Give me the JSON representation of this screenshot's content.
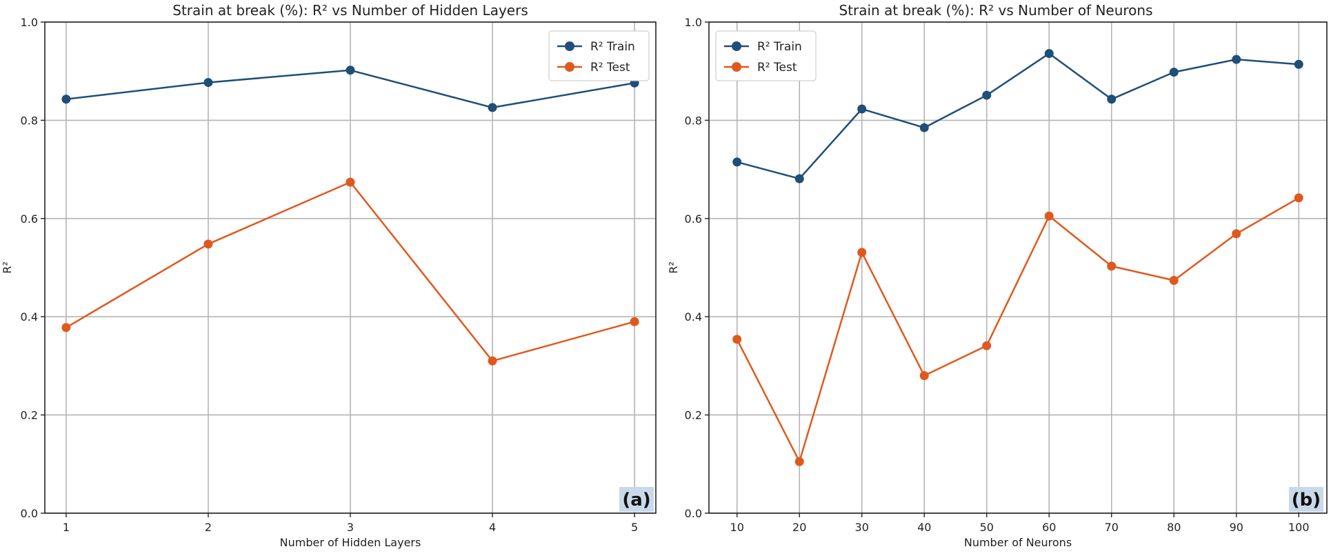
{
  "colors": {
    "train": "#1f4e79",
    "test": "#e0581e",
    "tag_bg": "#c9d9ea",
    "grid": "#b3b3b3"
  },
  "chart_data": [
    {
      "type": "line",
      "panel_label": "(a)",
      "title": "Strain at break (%): R² vs Number of Hidden Layers",
      "xlabel": "Number of Hidden Layers",
      "ylabel": "R²",
      "x": [
        1,
        2,
        3,
        4,
        5
      ],
      "xticks": [
        "1",
        "2",
        "3",
        "4",
        "5"
      ],
      "xlim": [
        0.85,
        5.15
      ],
      "ylim": [
        0.0,
        1.0
      ],
      "yticks": [
        "0.0",
        "0.2",
        "0.4",
        "0.6",
        "0.8",
        "1.0"
      ],
      "ytick_values": [
        0.0,
        0.2,
        0.4,
        0.6,
        0.8,
        1.0
      ],
      "grid": true,
      "legend": "top-right",
      "series": [
        {
          "name": "R² Train",
          "values": [
            0.843,
            0.877,
            0.902,
            0.826,
            0.876
          ]
        },
        {
          "name": "R² Test",
          "values": [
            0.378,
            0.548,
            0.674,
            0.31,
            0.39
          ]
        }
      ]
    },
    {
      "type": "line",
      "panel_label": "(b)",
      "title": "Strain at break (%): R² vs Number of Neurons",
      "xlabel": "Number of Neurons",
      "ylabel": "R²",
      "x": [
        10,
        20,
        30,
        40,
        50,
        60,
        70,
        80,
        90,
        100
      ],
      "xticks": [
        "10",
        "20",
        "30",
        "40",
        "50",
        "60",
        "70",
        "80",
        "90",
        "100"
      ],
      "xlim": [
        5.5,
        104.5
      ],
      "ylim": [
        0.0,
        1.0
      ],
      "yticks": [
        "0.0",
        "0.2",
        "0.4",
        "0.6",
        "0.8",
        "1.0"
      ],
      "ytick_values": [
        0.0,
        0.2,
        0.4,
        0.6,
        0.8,
        1.0
      ],
      "grid": true,
      "legend": "top-left",
      "series": [
        {
          "name": "R² Train",
          "values": [
            0.715,
            0.681,
            0.823,
            0.785,
            0.851,
            0.936,
            0.843,
            0.898,
            0.924,
            0.914
          ]
        },
        {
          "name": "R² Test",
          "values": [
            0.354,
            0.105,
            0.531,
            0.28,
            0.341,
            0.605,
            0.503,
            0.474,
            0.569,
            0.642
          ]
        }
      ]
    }
  ]
}
